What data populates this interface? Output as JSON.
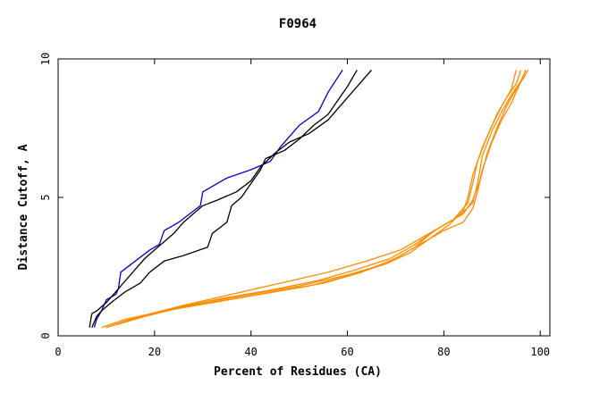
{
  "chart_data": {
    "type": "line",
    "title": "F0964",
    "xlabel": "Percent of Residues (CA)",
    "ylabel": "Distance Cutoff, A",
    "xlim": [
      0,
      102
    ],
    "ylim": [
      0,
      10
    ],
    "xticks": [
      0,
      20,
      40,
      60,
      80,
      100
    ],
    "yticks": [
      0,
      5,
      10
    ],
    "grid": false,
    "legend": "none",
    "series": [
      {
        "color": "#0000cc",
        "points": [
          [
            7.5,
            0.3
          ],
          [
            8,
            0.6
          ],
          [
            9,
            0.9
          ],
          [
            10,
            1.3
          ],
          [
            12,
            1.5
          ],
          [
            12.5,
            1.7
          ],
          [
            13,
            2.3
          ],
          [
            16,
            2.7
          ],
          [
            19,
            3.1
          ],
          [
            21,
            3.3
          ],
          [
            22,
            3.8
          ],
          [
            25,
            4.1
          ],
          [
            28,
            4.5
          ],
          [
            29.5,
            4.7
          ],
          [
            30,
            5.2
          ],
          [
            35,
            5.7
          ],
          [
            40,
            6.0
          ],
          [
            44,
            6.3
          ],
          [
            46,
            6.8
          ],
          [
            50,
            7.6
          ],
          [
            54,
            8.1
          ],
          [
            56,
            8.8
          ],
          [
            59,
            9.6
          ]
        ]
      },
      {
        "color": "#000000",
        "points": [
          [
            7,
            0.3
          ],
          [
            8,
            0.7
          ],
          [
            9,
            0.9
          ],
          [
            11,
            1.2
          ],
          [
            14,
            1.6
          ],
          [
            17,
            1.9
          ],
          [
            19,
            2.3
          ],
          [
            22,
            2.7
          ],
          [
            26,
            2.9
          ],
          [
            31,
            3.2
          ],
          [
            32,
            3.7
          ],
          [
            35,
            4.1
          ],
          [
            36,
            4.7
          ],
          [
            38,
            5.0
          ],
          [
            40,
            5.5
          ],
          [
            42,
            6.0
          ],
          [
            43,
            6.4
          ],
          [
            47,
            6.7
          ],
          [
            50,
            7.1
          ],
          [
            53,
            7.6
          ],
          [
            56,
            8.0
          ],
          [
            58,
            8.5
          ],
          [
            60,
            9.0
          ],
          [
            62,
            9.6
          ]
        ]
      },
      {
        "color": "#000000",
        "points": [
          [
            6.5,
            0.3
          ],
          [
            7,
            0.8
          ],
          [
            8,
            0.9
          ],
          [
            10,
            1.2
          ],
          [
            12,
            1.6
          ],
          [
            14,
            2.0
          ],
          [
            16,
            2.4
          ],
          [
            18,
            2.8
          ],
          [
            20,
            3.1
          ],
          [
            22,
            3.4
          ],
          [
            24,
            3.7
          ],
          [
            26,
            4.1
          ],
          [
            28,
            4.4
          ],
          [
            30,
            4.7
          ],
          [
            33,
            4.9
          ],
          [
            37,
            5.2
          ],
          [
            40,
            5.6
          ],
          [
            42,
            6.1
          ],
          [
            45,
            6.6
          ],
          [
            48,
            7.0
          ],
          [
            52,
            7.3
          ],
          [
            56,
            7.8
          ],
          [
            58,
            8.2
          ],
          [
            61,
            8.8
          ],
          [
            63,
            9.2
          ],
          [
            65,
            9.6
          ]
        ]
      },
      {
        "color": "#ff8c00",
        "points": [
          [
            10,
            0.3
          ],
          [
            15,
            0.6
          ],
          [
            20,
            0.8
          ],
          [
            30,
            1.2
          ],
          [
            40,
            1.5
          ],
          [
            50,
            1.8
          ],
          [
            60,
            2.2
          ],
          [
            68,
            2.6
          ],
          [
            74,
            3.2
          ],
          [
            78,
            3.8
          ],
          [
            82,
            4.2
          ],
          [
            85,
            4.8
          ],
          [
            86,
            5.5
          ],
          [
            87,
            6.3
          ],
          [
            89,
            7.2
          ],
          [
            91,
            8.0
          ],
          [
            93,
            8.6
          ],
          [
            95,
            9.1
          ],
          [
            96,
            9.6
          ]
        ]
      },
      {
        "color": "#ff8c00",
        "points": [
          [
            12,
            0.4
          ],
          [
            18,
            0.7
          ],
          [
            25,
            1.0
          ],
          [
            35,
            1.3
          ],
          [
            45,
            1.6
          ],
          [
            55,
            1.9
          ],
          [
            63,
            2.3
          ],
          [
            70,
            2.8
          ],
          [
            75,
            3.3
          ],
          [
            80,
            3.8
          ],
          [
            84,
            4.1
          ],
          [
            86,
            4.6
          ],
          [
            87,
            5.2
          ],
          [
            88,
            6.0
          ],
          [
            90,
            7.0
          ],
          [
            92,
            7.8
          ],
          [
            94,
            8.4
          ],
          [
            95.5,
            9.0
          ],
          [
            97,
            9.6
          ]
        ]
      },
      {
        "color": "#ff8c00",
        "points": [
          [
            9,
            0.3
          ],
          [
            14,
            0.6
          ],
          [
            22,
            0.9
          ],
          [
            32,
            1.2
          ],
          [
            42,
            1.5
          ],
          [
            52,
            1.8
          ],
          [
            61,
            2.2
          ],
          [
            68,
            2.6
          ],
          [
            73,
            3.0
          ],
          [
            77,
            3.5
          ],
          [
            81,
            4.0
          ],
          [
            84,
            4.5
          ],
          [
            85,
            5.0
          ],
          [
            86,
            5.8
          ],
          [
            88,
            6.8
          ],
          [
            90,
            7.6
          ],
          [
            92,
            8.3
          ],
          [
            94,
            8.9
          ],
          [
            95,
            9.6
          ]
        ]
      },
      {
        "color": "#ff8c00",
        "points": [
          [
            11,
            0.35
          ],
          [
            16,
            0.65
          ],
          [
            24,
            1.0
          ],
          [
            34,
            1.35
          ],
          [
            44,
            1.65
          ],
          [
            54,
            2.0
          ],
          [
            62,
            2.4
          ],
          [
            69,
            2.8
          ],
          [
            74,
            3.3
          ],
          [
            79,
            3.9
          ],
          [
            83,
            4.3
          ],
          [
            86,
            4.8
          ],
          [
            87,
            5.5
          ],
          [
            88,
            6.5
          ],
          [
            90,
            7.4
          ],
          [
            92,
            8.1
          ],
          [
            94,
            8.7
          ],
          [
            96,
            9.2
          ],
          [
            97,
            9.6
          ]
        ]
      },
      {
        "color": "#ff8c00",
        "points": [
          [
            10,
            0.3
          ],
          [
            17,
            0.7
          ],
          [
            26,
            1.1
          ],
          [
            36,
            1.5
          ],
          [
            46,
            1.9
          ],
          [
            56,
            2.3
          ],
          [
            64,
            2.7
          ],
          [
            71,
            3.1
          ],
          [
            76,
            3.6
          ],
          [
            80,
            4.0
          ],
          [
            84,
            4.4
          ],
          [
            86,
            4.9
          ],
          [
            87.5,
            5.6
          ],
          [
            89,
            6.6
          ],
          [
            91,
            7.5
          ],
          [
            93,
            8.3
          ],
          [
            95,
            8.9
          ],
          [
            96.5,
            9.3
          ],
          [
            97.5,
            9.6
          ]
        ]
      }
    ]
  }
}
